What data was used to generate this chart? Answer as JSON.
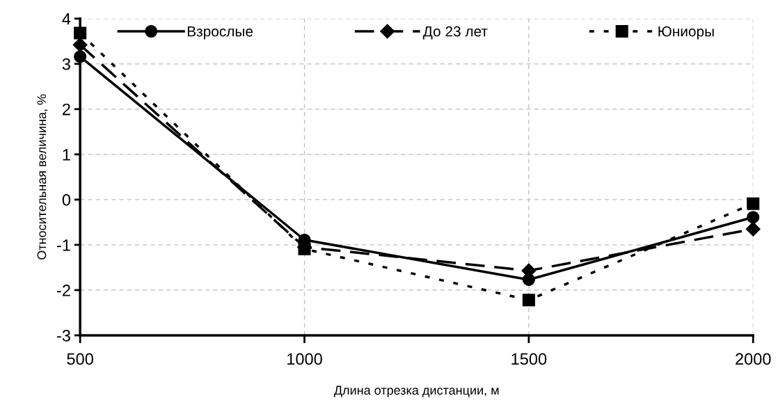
{
  "chart_data": {
    "type": "line",
    "xlabel": "Длина отрезка дистанции, м",
    "ylabel": "Относительная величина, %",
    "x": [
      500,
      1000,
      1500,
      2000
    ],
    "xlim": [
      500,
      2000
    ],
    "xticks": [
      500,
      1000,
      1500,
      2000
    ],
    "ylim": [
      -3,
      4
    ],
    "yticks": [
      -3,
      -2,
      -1,
      0,
      1,
      2,
      3,
      4
    ],
    "grid": true,
    "legend": "top",
    "series": [
      {
        "name": "Взрослые",
        "color": "#000000",
        "values": [
          3.16,
          -0.89,
          -1.77,
          -0.39
        ],
        "marker": "circle",
        "line_style": "solid"
      },
      {
        "name": "До 23 лет",
        "color": "#000000",
        "values": [
          3.42,
          -1.05,
          -1.57,
          -0.65
        ],
        "marker": "diamond",
        "line_style": "dashed"
      },
      {
        "name": "Юниоры",
        "color": "#000000",
        "values": [
          3.68,
          -1.09,
          -2.22,
          -0.09
        ],
        "marker": "square",
        "line_style": "dotted"
      }
    ]
  }
}
